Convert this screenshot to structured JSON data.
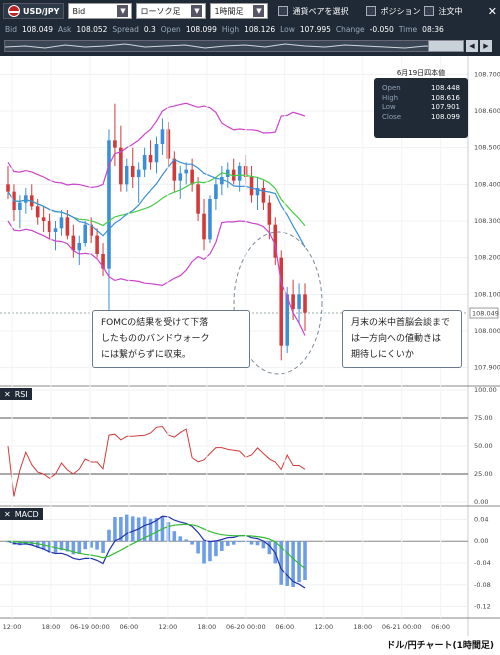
{
  "toolbar": {
    "pair": "USD/JPY",
    "price_type": "Bid",
    "chart_type": "ローソク足",
    "timeframe": "1時間足",
    "select_pair": "通貨ペアを選択",
    "position": "ポジション",
    "order": "注文中"
  },
  "info": {
    "bid_label": "Bid",
    "bid": "108.049",
    "ask_label": "Ask",
    "ask": "108.052",
    "spread_label": "Spread",
    "spread": "0.3",
    "open_label": "Open",
    "open": "108.099",
    "high_label": "High",
    "high": "108.126",
    "low_label": "Low",
    "low": "107.995",
    "change_label": "Change",
    "change": "-0.050",
    "time_label": "Time",
    "time": "08:36"
  },
  "ohlc_box": {
    "title": "6月19日四本値",
    "open_label": "Open",
    "open": "108.448",
    "high_label": "High",
    "high": "108.616",
    "low_label": "Low",
    "low": "107.901",
    "close_label": "Close",
    "close": "108.099"
  },
  "callouts": {
    "left": [
      "FOMCの結果を受けて下落",
      "したもののバンドウォーク",
      "には繋がらずに収束。"
    ],
    "right": [
      "月末の米中首脳会談まで",
      "は一方向への値動きは",
      "期待しにくいか"
    ]
  },
  "panels": {
    "rsi": "RSI",
    "macd": "MACD"
  },
  "footer": "ドル/円チャート(1時間足)",
  "colors": {
    "up": "#3a8fd8",
    "down": "#d23a3a",
    "bollinger_outer": "#cc44cc",
    "bollinger_mid": "#44cc44",
    "ma": "#3a8fd8",
    "dark": "#1f2a36"
  },
  "chart_data": [
    {
      "type": "candlestick",
      "ylim": [
        107.85,
        108.75
      ],
      "yticks": [
        "108.700",
        "108.600",
        "108.500",
        "108.400",
        "108.300",
        "108.200",
        "108.100",
        "108.000",
        "107.900"
      ],
      "last_price": "108.049",
      "xticks": [
        "12:00",
        "18:00",
        "06-19 00:00",
        "06:00",
        "12:00",
        "18:00",
        "06-20 00:00",
        "06:00",
        "12:00",
        "18:00",
        "06-21 00:00",
        "06:00"
      ],
      "candles": [
        [
          108.4,
          108.45,
          108.36,
          108.38
        ],
        [
          108.38,
          108.4,
          108.3,
          108.33
        ],
        [
          108.33,
          108.37,
          108.28,
          108.35
        ],
        [
          108.35,
          108.39,
          108.32,
          108.37
        ],
        [
          108.37,
          108.4,
          108.33,
          108.34
        ],
        [
          108.34,
          108.36,
          108.29,
          108.31
        ],
        [
          108.31,
          108.34,
          108.27,
          108.3
        ],
        [
          108.3,
          108.32,
          108.25,
          108.27
        ],
        [
          108.27,
          108.3,
          108.22,
          108.28
        ],
        [
          108.28,
          108.33,
          108.26,
          108.31
        ],
        [
          108.31,
          108.33,
          108.25,
          108.26
        ],
        [
          108.26,
          108.29,
          108.2,
          108.22
        ],
        [
          108.22,
          108.26,
          108.18,
          108.24
        ],
        [
          108.24,
          108.3,
          108.23,
          108.29
        ],
        [
          108.29,
          108.31,
          108.24,
          108.26
        ],
        [
          108.26,
          108.28,
          108.2,
          108.21
        ],
        [
          108.21,
          108.24,
          108.15,
          108.17
        ],
        [
          108.17,
          108.55,
          108.05,
          108.52
        ],
        [
          108.52,
          108.62,
          108.45,
          108.5
        ],
        [
          108.5,
          108.56,
          108.38,
          108.4
        ],
        [
          108.4,
          108.47,
          108.38,
          108.45
        ],
        [
          108.45,
          108.5,
          108.39,
          108.42
        ],
        [
          108.42,
          108.46,
          108.35,
          108.44
        ],
        [
          108.44,
          108.5,
          108.42,
          108.48
        ],
        [
          108.48,
          108.52,
          108.44,
          108.46
        ],
        [
          108.46,
          108.53,
          108.43,
          108.51
        ],
        [
          108.51,
          108.58,
          108.48,
          108.55
        ],
        [
          108.55,
          108.57,
          108.45,
          108.47
        ],
        [
          108.47,
          108.49,
          108.38,
          108.41
        ],
        [
          108.41,
          108.45,
          108.36,
          108.43
        ],
        [
          108.43,
          108.46,
          108.4,
          108.44
        ],
        [
          108.44,
          108.47,
          108.38,
          108.4
        ],
        [
          108.4,
          108.42,
          108.3,
          108.32
        ],
        [
          108.32,
          108.36,
          108.22,
          108.25
        ],
        [
          108.25,
          108.37,
          108.24,
          108.36
        ],
        [
          108.36,
          108.42,
          108.33,
          108.4
        ],
        [
          108.4,
          108.45,
          108.37,
          108.42
        ],
        [
          108.42,
          108.46,
          108.39,
          108.44
        ],
        [
          108.44,
          108.47,
          108.4,
          108.41
        ],
        [
          108.41,
          108.46,
          108.38,
          108.45
        ],
        [
          108.45,
          108.48,
          108.4,
          108.42
        ],
        [
          108.42,
          108.45,
          108.35,
          108.37
        ],
        [
          108.37,
          108.42,
          108.33,
          108.39
        ],
        [
          108.39,
          108.41,
          108.33,
          108.35
        ],
        [
          108.35,
          108.37,
          108.25,
          108.29
        ],
        [
          108.29,
          108.31,
          108.18,
          108.2
        ],
        [
          108.2,
          108.22,
          107.92,
          107.96
        ],
        [
          107.96,
          108.12,
          107.94,
          108.1
        ],
        [
          108.1,
          108.14,
          108.03,
          108.06
        ],
        [
          108.06,
          108.13,
          108.02,
          108.1
        ],
        [
          108.1,
          108.13,
          108.0,
          108.05
        ]
      ]
    },
    {
      "type": "line",
      "title": "RSI",
      "ylim": [
        0,
        100
      ],
      "yticks": [
        "100.00",
        "75.00",
        "50.00",
        "25.00",
        "0.00"
      ]
    },
    {
      "type": "line",
      "title": "MACD",
      "ylim": [
        -0.13,
        0.05
      ],
      "yticks": [
        "0.04",
        "0.00",
        "-0.04",
        "-0.08",
        "-0.12"
      ]
    }
  ]
}
